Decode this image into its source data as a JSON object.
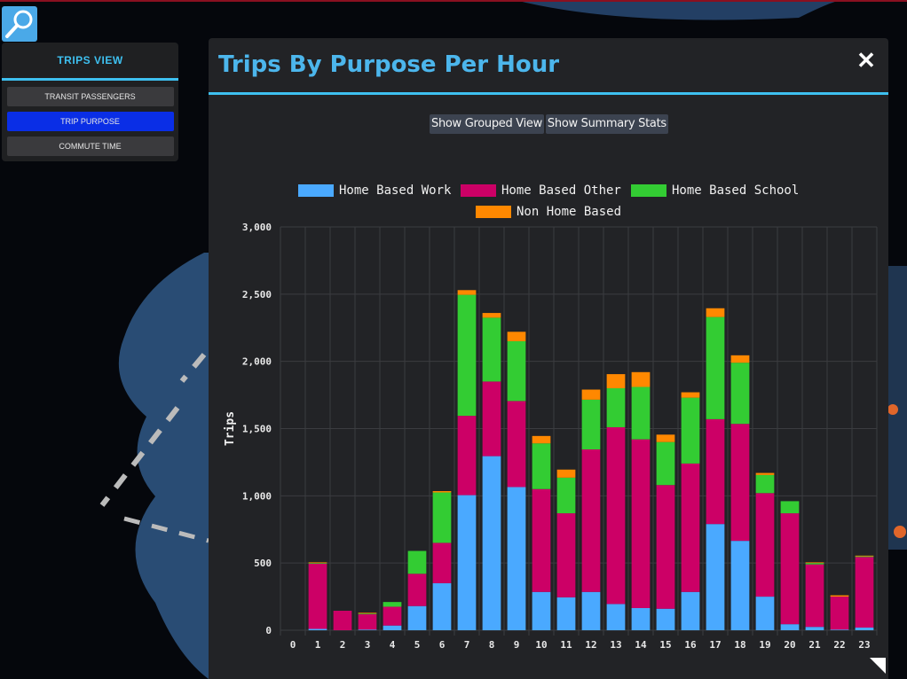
{
  "left_panel": {
    "title": "TRIPS VIEW",
    "items": [
      {
        "label": "TRANSIT PASSENGERS",
        "active": false
      },
      {
        "label": "TRIP PURPOSE",
        "active": true
      },
      {
        "label": "COMMUTE TIME",
        "active": false
      }
    ]
  },
  "modal": {
    "title": "Trips By Purpose Per Hour",
    "close_symbol": "✕",
    "buttons": {
      "grouped": "Show Grouped View",
      "summary": "Show Summary Stats"
    }
  },
  "colors": {
    "home_based_work": "#4aa9ff",
    "home_based_other": "#cc0066",
    "home_based_school": "#33cc33",
    "non_home_based": "#ff8800"
  },
  "chart_data": {
    "type": "bar",
    "stacked": true,
    "title": "",
    "xlabel": "",
    "ylabel": "Trips",
    "ylim": [
      0,
      3000
    ],
    "yticks": [
      0,
      500,
      1000,
      1500,
      2000,
      2500,
      3000
    ],
    "ytick_labels": [
      "0",
      "500",
      "1,000",
      "1,500",
      "2,000",
      "2,500",
      "3,000"
    ],
    "legend_position": "top",
    "categories": [
      "0",
      "1",
      "2",
      "3",
      "4",
      "5",
      "6",
      "7",
      "8",
      "9",
      "10",
      "11",
      "12",
      "13",
      "14",
      "15",
      "16",
      "17",
      "18",
      "19",
      "20",
      "21",
      "22",
      "23"
    ],
    "series": [
      {
        "name": "Home Based Work",
        "color": "#4aa9ff",
        "values": [
          0,
          10,
          0,
          5,
          35,
          180,
          350,
          1005,
          1295,
          1065,
          285,
          245,
          285,
          195,
          165,
          160,
          285,
          790,
          665,
          250,
          45,
          25,
          5,
          20
        ]
      },
      {
        "name": "Home Based Other",
        "color": "#cc0066",
        "values": [
          0,
          485,
          145,
          115,
          140,
          240,
          300,
          590,
          555,
          640,
          765,
          625,
          1060,
          1315,
          1255,
          920,
          955,
          780,
          870,
          770,
          825,
          465,
          245,
          525
        ]
      },
      {
        "name": "Home Based School",
        "color": "#33cc33",
        "values": [
          0,
          5,
          0,
          5,
          35,
          170,
          375,
          900,
          475,
          445,
          340,
          265,
          370,
          290,
          390,
          320,
          490,
          760,
          455,
          135,
          90,
          10,
          0,
          5
        ]
      },
      {
        "name": "Non Home Based",
        "color": "#ff8800",
        "values": [
          0,
          5,
          0,
          5,
          0,
          0,
          10,
          35,
          35,
          70,
          55,
          60,
          75,
          105,
          110,
          55,
          40,
          65,
          55,
          15,
          0,
          5,
          10,
          5
        ]
      }
    ]
  }
}
